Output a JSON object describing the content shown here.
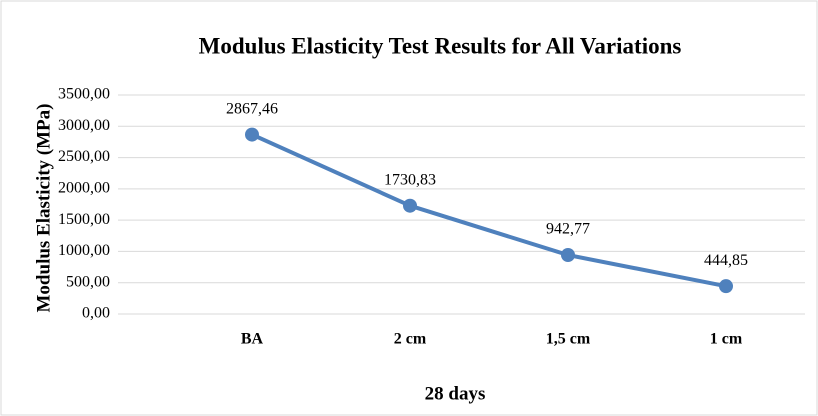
{
  "chart_data": {
    "type": "line",
    "title": "Modulus Elasticity Test Results for All  Variations",
    "x_label": "28 days",
    "y_label": "Modulus Elasticity  (MPa)",
    "categories": [
      "BA",
      "2 cm",
      "1,5 cm",
      "1 cm"
    ],
    "series": [
      {
        "name": "Modulus Elasticity",
        "color": "#4f81bd",
        "values": [
          2867.46,
          1730.83,
          942.77,
          444.85
        ],
        "value_labels": [
          "2867,46",
          "1730,83",
          "942,77",
          "444,85"
        ]
      }
    ],
    "ylim": [
      0,
      3500
    ],
    "yticks": [
      {
        "value": 0,
        "label": "0,00"
      },
      {
        "value": 500,
        "label": "500,00"
      },
      {
        "value": 1000,
        "label": "1000,00"
      },
      {
        "value": 1500,
        "label": "1500,00"
      },
      {
        "value": 2000,
        "label": "2000,00"
      },
      {
        "value": 2500,
        "label": "2500,00"
      },
      {
        "value": 3000,
        "label": "3000,00"
      },
      {
        "value": 3500,
        "label": "3500,00"
      }
    ],
    "grid": true
  }
}
